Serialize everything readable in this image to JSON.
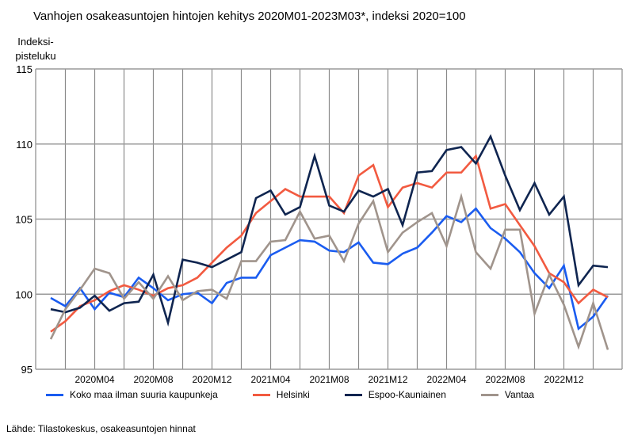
{
  "chart_data": {
    "type": "line",
    "title": "Vanhojen osakeasuntojen hintojen kehitys 2020M01-2023M03*, indeksi 2020=100",
    "ylabel_lines": [
      "Indeksi-",
      "pisteluku"
    ],
    "xlabel": "",
    "ylim": [
      95,
      115
    ],
    "yticks": [
      95,
      100,
      105,
      110,
      115
    ],
    "grid": true,
    "legend_position": "bottom",
    "x": [
      "2020M01",
      "2020M02",
      "2020M03",
      "2020M04",
      "2020M05",
      "2020M06",
      "2020M07",
      "2020M08",
      "2020M09",
      "2020M10",
      "2020M11",
      "2020M12",
      "2021M01",
      "2021M02",
      "2021M03",
      "2021M04",
      "2021M05",
      "2021M06",
      "2021M07",
      "2021M08",
      "2021M09",
      "2021M10",
      "2021M11",
      "2021M12",
      "2022M01",
      "2022M02",
      "2022M03",
      "2022M04",
      "2022M05",
      "2022M06",
      "2022M07",
      "2022M08",
      "2022M09",
      "2022M10",
      "2022M11",
      "2022M12",
      "2023M01",
      "2023M02",
      "2023M03"
    ],
    "xtick_labels": [
      "2020M04",
      "2020M08",
      "2020M12",
      "2021M04",
      "2021M08",
      "2021M12",
      "2022M04",
      "2022M08",
      "2022M12"
    ],
    "series": [
      {
        "name": "Koko maa ilman suuria kaupunkeja",
        "color": "#1a5cf0",
        "values": [
          99.75,
          99.2,
          100.4,
          99.0,
          100.1,
          99.8,
          101.1,
          100.4,
          99.6,
          100.0,
          100.1,
          99.4,
          100.75,
          101.1,
          101.1,
          102.6,
          103.1,
          103.6,
          103.5,
          102.9,
          102.8,
          103.45,
          102.1,
          102.0,
          102.7,
          103.1,
          104.1,
          105.2,
          104.8,
          105.7,
          104.4,
          103.7,
          102.8,
          101.4,
          100.4,
          101.9,
          97.7,
          98.5,
          99.9
        ]
      },
      {
        "name": "Helsinki",
        "color": "#f25a40",
        "values": [
          97.5,
          98.2,
          99.2,
          99.6,
          100.2,
          100.6,
          100.3,
          99.9,
          100.4,
          100.6,
          101.1,
          102.1,
          103.1,
          103.9,
          105.4,
          106.2,
          107.0,
          106.5,
          106.5,
          106.5,
          105.4,
          107.9,
          108.6,
          105.8,
          107.1,
          107.4,
          107.1,
          108.1,
          108.1,
          109.2,
          105.7,
          106.0,
          104.6,
          103.2,
          101.4,
          100.8,
          99.4,
          100.3,
          99.8
        ]
      },
      {
        "name": "Espoo-Kauniainen",
        "color": "#0f2550",
        "values": [
          99.0,
          98.8,
          99.1,
          99.9,
          98.9,
          99.4,
          99.5,
          101.3,
          98.1,
          102.3,
          102.1,
          101.8,
          102.3,
          102.8,
          106.4,
          106.9,
          105.3,
          105.8,
          109.2,
          105.9,
          105.5,
          106.9,
          106.5,
          107.0,
          104.6,
          108.1,
          108.2,
          109.6,
          109.8,
          108.7,
          110.5,
          107.9,
          105.6,
          107.4,
          105.3,
          106.5,
          100.6,
          101.9,
          101.8
        ]
      },
      {
        "name": "Vantaa",
        "color": "#a0948c",
        "values": [
          97.0,
          99.0,
          100.3,
          101.7,
          101.4,
          99.7,
          100.8,
          99.7,
          101.2,
          99.6,
          100.2,
          100.3,
          99.7,
          102.2,
          102.2,
          103.5,
          103.6,
          105.5,
          103.7,
          103.9,
          102.2,
          104.7,
          106.2,
          102.8,
          104.1,
          104.8,
          105.4,
          103.2,
          106.5,
          102.8,
          101.7,
          104.3,
          104.3,
          98.7,
          101.3,
          99.3,
          96.5,
          99.4,
          96.3
        ]
      }
    ]
  },
  "source": "Lähde: Tilastokeskus, osakeasuntojen hinnat"
}
